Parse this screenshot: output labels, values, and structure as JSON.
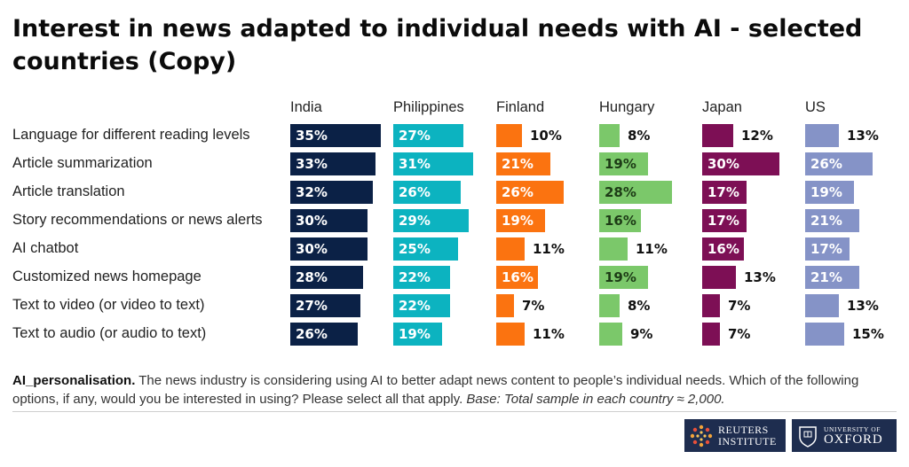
{
  "title": "Interest in news adapted to individual needs with AI - selected countries (Copy)",
  "chart_data": {
    "type": "bar",
    "orientation": "horizontal",
    "categories": [
      "Language for different reading levels",
      "Article summarization",
      "Article translation",
      "Story recommendations or news alerts",
      "AI chatbot",
      "Customized news homepage",
      "Text to video (or video to text)",
      "Text to audio (or audio to text)"
    ],
    "series": [
      {
        "name": "India",
        "color": "#0b2146",
        "values": [
          35,
          33,
          32,
          30,
          30,
          28,
          27,
          26
        ]
      },
      {
        "name": "Philippines",
        "color": "#0cb3c0",
        "values": [
          27,
          31,
          26,
          29,
          25,
          22,
          22,
          19
        ]
      },
      {
        "name": "Finland",
        "color": "#fb7310",
        "values": [
          10,
          21,
          26,
          19,
          11,
          16,
          7,
          11
        ]
      },
      {
        "name": "Hungary",
        "color": "#7bc86a",
        "values": [
          8,
          19,
          28,
          16,
          11,
          19,
          8,
          9
        ]
      },
      {
        "name": "Japan",
        "color": "#7d0f55",
        "values": [
          12,
          30,
          17,
          17,
          16,
          13,
          7,
          7
        ]
      },
      {
        "name": "US",
        "color": "#8593c7",
        "values": [
          13,
          26,
          19,
          21,
          17,
          21,
          13,
          15
        ]
      }
    ],
    "value_suffix": "%",
    "xlim": [
      0,
      35
    ]
  },
  "note": {
    "lead": "AI_personalisation.",
    "text": " The news industry is considering using AI to better adapt news content to people’s individual needs. Which of the following options, if any, would you be interested in using? Please select all that apply. ",
    "base": "Base: Total sample in each country ≈ 2,000."
  },
  "logos": {
    "reuters_line1": "REUTERS",
    "reuters_line2": "INSTITUTE",
    "oxford_line1": "UNIVERSITY OF",
    "oxford_line2": "OXFORD"
  }
}
